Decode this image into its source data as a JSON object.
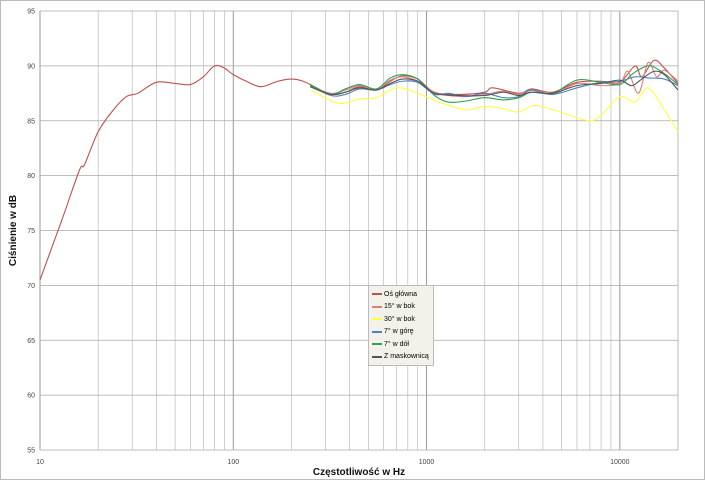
{
  "chart_data": {
    "type": "line",
    "xlabel": "Częstotliwość w Hz",
    "ylabel": "Ciśnienie w dB",
    "xscale": "log",
    "xlim": [
      10,
      20000
    ],
    "ylim": [
      55,
      95
    ],
    "xticks": [
      "10",
      "100",
      "1000",
      "10000"
    ],
    "yticks": [
      "55",
      "60",
      "65",
      "70",
      "75",
      "80",
      "85",
      "90",
      "95"
    ],
    "grid": true,
    "legend": "center-bottom",
    "series": [
      {
        "name": "Oś główna",
        "color": "#c0504d",
        "x": [
          10,
          13,
          16,
          17,
          20,
          24,
          28,
          32,
          40,
          50,
          60,
          70,
          80,
          90,
          100,
          120,
          140,
          170,
          200,
          230,
          270,
          320,
          380,
          450,
          550,
          650,
          750,
          900,
          1100,
          1500,
          2000,
          2200,
          3000,
          3500,
          4500,
          6000,
          8000,
          10000,
          12000,
          13000,
          15000,
          17000,
          20000
        ],
        "y": [
          70.5,
          76,
          80.5,
          81,
          84,
          86,
          87.2,
          87.5,
          88.5,
          88.4,
          88.3,
          89,
          90,
          89.8,
          89.2,
          88.5,
          88.1,
          88.6,
          88.8,
          88.6,
          88,
          87.4,
          87.6,
          88.1,
          87.8,
          88.6,
          89.1,
          88.8,
          87.6,
          87.4,
          87.6,
          88,
          87.5,
          87.9,
          87.6,
          88.5,
          88.6,
          88.5,
          90,
          89,
          90.5,
          89.8,
          88.4
        ]
      },
      {
        "name": "15° w bok",
        "color": "#d98080",
        "x": [
          250,
          320,
          380,
          450,
          550,
          650,
          750,
          900,
          1100,
          1500,
          2000,
          2500,
          3000,
          3500,
          4500,
          6000,
          8000,
          10000,
          11000,
          12500,
          14000,
          15500,
          17000,
          20000
        ],
        "y": [
          88.2,
          87.5,
          87.8,
          88.2,
          87.8,
          88.7,
          89,
          88.6,
          87.6,
          87.2,
          87.4,
          87.7,
          87.4,
          87.8,
          87.4,
          88.4,
          88.2,
          88.4,
          89.5,
          87.5,
          90.3,
          89,
          89.6,
          88.6
        ]
      },
      {
        "name": "30° w bok",
        "color": "#ffff40",
        "x": [
          250,
          350,
          450,
          550,
          700,
          900,
          1200,
          1600,
          2000,
          2500,
          3000,
          3600,
          4500,
          5500,
          7000,
          8000,
          10000,
          12000,
          14000,
          17000,
          20000
        ],
        "y": [
          87.8,
          86.6,
          87,
          87.1,
          88,
          87.5,
          86.6,
          86,
          86.3,
          86.1,
          85.8,
          86.4,
          86,
          85.5,
          85,
          85.5,
          87.2,
          86.7,
          88,
          86,
          84
        ]
      },
      {
        "name": "7° w górę",
        "color": "#4f81bd",
        "x": [
          250,
          320,
          380,
          450,
          550,
          650,
          750,
          900,
          1100,
          1300,
          1600,
          2000,
          2500,
          3000,
          3500,
          4500,
          6000,
          8000,
          10000,
          12000,
          14000,
          17000,
          20000
        ],
        "y": [
          88.2,
          87.3,
          87.4,
          87.9,
          87.8,
          88.3,
          88.6,
          88.5,
          87.4,
          87.5,
          87.2,
          87.5,
          87.1,
          87.2,
          87.8,
          87.4,
          88,
          88.5,
          88.6,
          89,
          88.9,
          88.8,
          88.2
        ]
      },
      {
        "name": "7° w dół",
        "color": "#2e9e4f",
        "x": [
          250,
          320,
          380,
          450,
          550,
          650,
          750,
          900,
          1100,
          1300,
          1600,
          2000,
          2500,
          3000,
          3500,
          4500,
          6000,
          8000,
          10000,
          11500,
          13000,
          14500,
          17000,
          20000
        ],
        "y": [
          88.3,
          87.4,
          87.9,
          88.3,
          87.9,
          88.9,
          89.2,
          88.8,
          87.3,
          86.7,
          86.8,
          87.1,
          86.9,
          87.1,
          87.6,
          87.5,
          88.7,
          88.5,
          88.3,
          89.2,
          89.8,
          90,
          89.3,
          88.3
        ]
      },
      {
        "name": "Z maskownicą",
        "color": "#555555",
        "x": [
          250,
          320,
          380,
          450,
          550,
          650,
          750,
          900,
          1100,
          1500,
          2000,
          2500,
          3000,
          3500,
          4500,
          6000,
          8000,
          10000,
          11500,
          13000,
          15000,
          17000,
          20000
        ],
        "y": [
          88.1,
          87.4,
          87.6,
          88,
          87.8,
          88.4,
          88.8,
          88.6,
          87.5,
          87.3,
          87.3,
          87.6,
          87.3,
          87.6,
          87.5,
          88.2,
          88.4,
          88.7,
          88.2,
          88.8,
          89.5,
          89.2,
          87.8
        ]
      }
    ]
  }
}
